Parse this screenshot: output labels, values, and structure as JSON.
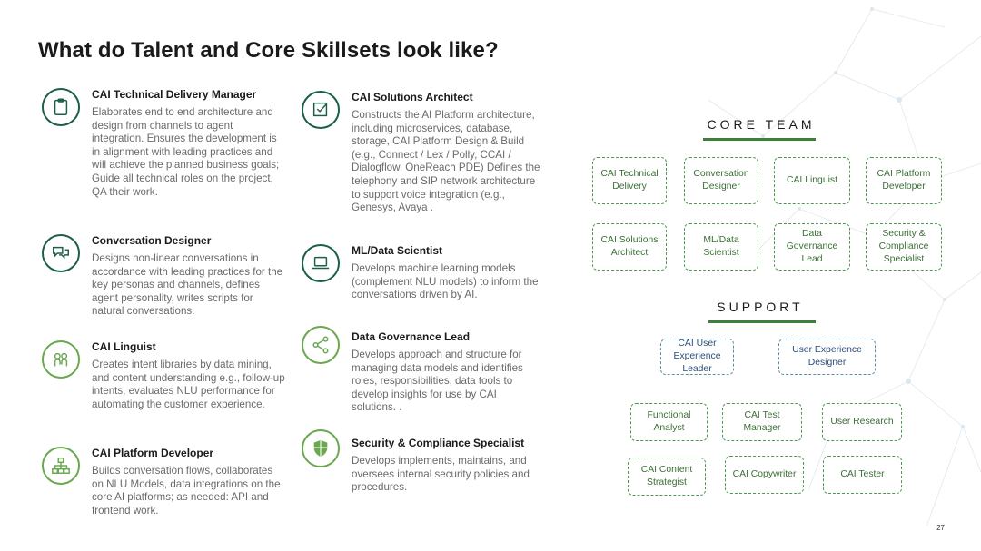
{
  "title": "What do Talent and Core Skillsets look like?",
  "roles_left": [
    {
      "title": "CAI Technical Delivery Manager",
      "desc": "Elaborates end to end architecture and design from channels to agent integration. Ensures the development is in alignment with leading practices and will achieve the planned business goals; Guide all technical roles on the project, QA their work.",
      "icon": "clipboard-icon"
    },
    {
      "title": "Conversation Designer",
      "desc": "Designs non-linear conversations in accordance with leading practices for the key personas and channels, defines agent personality, writes scripts for natural conversations.",
      "icon": "chat-bubbles-icon"
    },
    {
      "title": "CAI Linguist",
      "desc": "Creates intent libraries by data mining, and content understanding e.g., follow-up intents, evaluates NLU performance for automating the customer experience.",
      "icon": "linguist-icon"
    },
    {
      "title": "CAI Platform Developer",
      "desc": "Builds conversation flows, collaborates on NLU Models, data integrations on the core AI platforms; as needed: API and frontend work.",
      "icon": "hierarchy-icon"
    }
  ],
  "roles_right": [
    {
      "title": "CAI Solutions Architect",
      "desc": "Constructs the AI Platform architecture, including microservices, database, storage, CAI Platform Design & Build (e.g., Connect / Lex / Polly, CCAI / Dialogflow, OneReach PDE) Defines the telephony and SIP network architecture to support voice integration (e.g., Genesys, Avaya .",
      "icon": "checkbox-icon"
    },
    {
      "title": "ML/Data Scientist",
      "desc": "Develops machine learning models (complement NLU models) to inform the conversations driven by AI.",
      "icon": "laptop-icon"
    },
    {
      "title": "Data Governance Lead",
      "desc": "Develops approach and structure for managing data models and identifies roles, responsibilities, data tools to develop insights for use by CAI solutions. .",
      "icon": "share-icon"
    },
    {
      "title": "Security & Compliance Specialist",
      "desc": "Develops implements, maintains, and oversees internal security policies and procedures.",
      "icon": "shield-icon"
    }
  ],
  "core_team": {
    "heading": "CORE TEAM",
    "boxes": [
      "CAI Technical Delivery",
      "Conversation Designer",
      "CAI Linguist",
      "CAI Platform Developer",
      "CAI Solutions Architect",
      "ML/Data Scientist",
      "Data Governance Lead",
      "Security & Compliance Specialist"
    ]
  },
  "support": {
    "heading": "SUPPORT",
    "boxes": [
      "CAI User Experience Leader",
      "User Experience Designer",
      "Functional Analyst",
      "CAI Test Manager",
      "User Research",
      "CAI Content Strategist",
      "CAI Copywriter",
      "CAI Tester"
    ]
  },
  "colors": {
    "dark_green": "#1b5e4a",
    "light_green": "#6aa84f",
    "box_green": "#4d9a4f",
    "box_blue": "#5b8fa6"
  },
  "page_number": "27"
}
